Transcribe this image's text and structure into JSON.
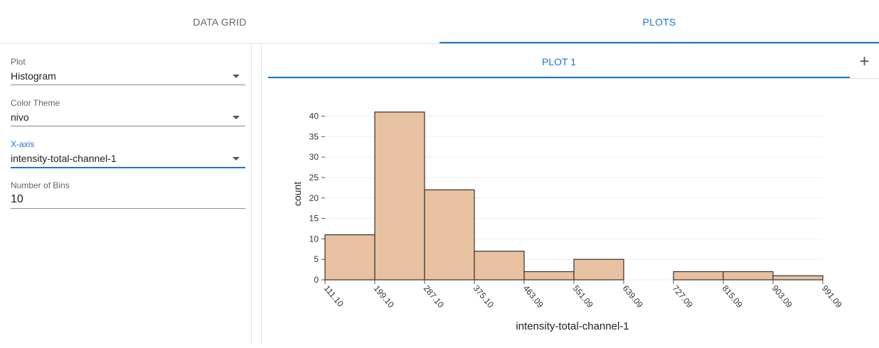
{
  "tabs": [
    {
      "label": "DATA GRID",
      "active": false
    },
    {
      "label": "PLOTS",
      "active": true
    }
  ],
  "settings": {
    "plot": {
      "label": "Plot",
      "value": "Histogram"
    },
    "color_theme": {
      "label": "Color Theme",
      "value": "nivo"
    },
    "x_axis": {
      "label": "X-axis",
      "value": "intensity-total-channel-1"
    },
    "bins": {
      "label": "Number of Bins",
      "value": "10"
    }
  },
  "plot_tabs": [
    {
      "label": "PLOT 1",
      "active": true
    }
  ],
  "add_plot_icon": "plus-icon",
  "colors": {
    "accent": "#1976d2",
    "bar_fill": "#e8c1a0",
    "bar_stroke": "#333333"
  },
  "chart_data": {
    "type": "bar",
    "subtype": "histogram",
    "bin_edges": [
      "111.10",
      "199.10",
      "287.10",
      "375.10",
      "463.09",
      "551.09",
      "639.09",
      "727.09",
      "815.09",
      "903.09",
      "991.09"
    ],
    "values": [
      11,
      41,
      22,
      7,
      2,
      5,
      0,
      2,
      2,
      1
    ],
    "xlabel": "intensity-total-channel-1",
    "ylabel": "count",
    "ylim": [
      0,
      42
    ],
    "yticks": [
      0,
      5,
      10,
      15,
      20,
      25,
      30,
      35,
      40
    ],
    "grid": true
  }
}
